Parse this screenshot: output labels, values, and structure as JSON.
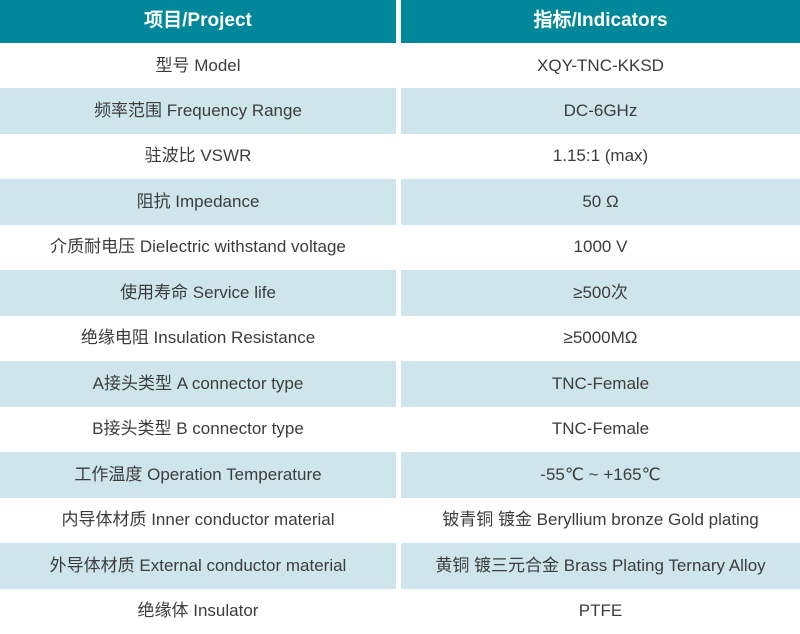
{
  "table": {
    "header": {
      "project": "项目/Project",
      "indicators": "指标/Indicators"
    },
    "rows": [
      {
        "label": "型号 Model",
        "value": "XQY-TNC-KKSD"
      },
      {
        "label": "频率范围 Frequency Range",
        "value": "DC-6GHz"
      },
      {
        "label": "驻波比 VSWR",
        "value": "1.15:1 (max)"
      },
      {
        "label": "阻抗 Impedance",
        "value": "50 Ω"
      },
      {
        "label": "介质耐电压 Dielectric withstand voltage",
        "value": "1000 V"
      },
      {
        "label": "使用寿命 Service life",
        "value": "≥500次"
      },
      {
        "label": "绝缘电阻 Insulation Resistance",
        "value": "≥5000MΩ"
      },
      {
        "label": "A接头类型 A connector type",
        "value": "TNC-Female"
      },
      {
        "label": "B接头类型 B connector type",
        "value": "TNC-Female"
      },
      {
        "label": "工作温度 Operation Temperature",
        "value": "-55℃ ~ +165℃"
      },
      {
        "label": "内导体材质 Inner conductor material",
        "value": "铍青铜 镀金 Beryllium bronze Gold plating"
      },
      {
        "label": "外导体材质 External conductor material",
        "value": "黄铜 镀三元合金 Brass Plating Ternary Alloy"
      },
      {
        "label": "绝缘体 Insulator",
        "value": "PTFE"
      }
    ],
    "colors": {
      "header_bg": "#00879A",
      "header_text": "#FFFFFF",
      "row_bg": "#FFFFFF",
      "row_alt_bg": "#CEE6EB",
      "body_text": "#3C3C3C",
      "divider": "#FFFFFF"
    }
  }
}
